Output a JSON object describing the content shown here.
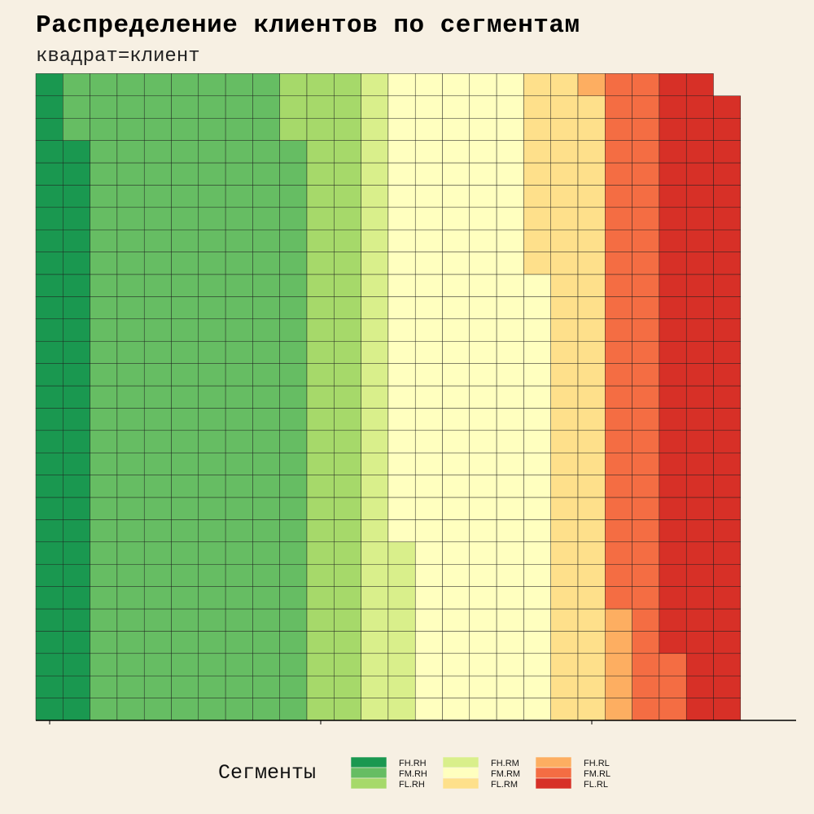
{
  "title": "Распределение клиентов по сегментам",
  "subtitle": "квадрат=клиент",
  "legend": {
    "title": "Сегменты"
  },
  "chart_data": {
    "type": "waffle",
    "grid": {
      "rows": 29,
      "fill_order": "column-wise, bottom to top"
    },
    "segments": [
      {
        "name": "FH.RH",
        "count": 55,
        "color": "#1a9850"
      },
      {
        "name": "FM.RH",
        "count": 232,
        "color": "#66bd63"
      },
      {
        "name": "FL.RH",
        "count": 61,
        "color": "#a6d96a"
      },
      {
        "name": "FH.RM",
        "count": 37,
        "color": "#d9ef8b"
      },
      {
        "name": "FM.RM",
        "count": 157,
        "color": "#ffffbf"
      },
      {
        "name": "FL.RM",
        "count": 66,
        "color": "#fee08b"
      },
      {
        "name": "FH.RL",
        "count": 6,
        "color": "#fdae61"
      },
      {
        "name": "FM.RL",
        "count": 56,
        "color": "#f46d43"
      },
      {
        "name": "FL.RL",
        "count": 83,
        "color": "#d73027"
      }
    ]
  }
}
